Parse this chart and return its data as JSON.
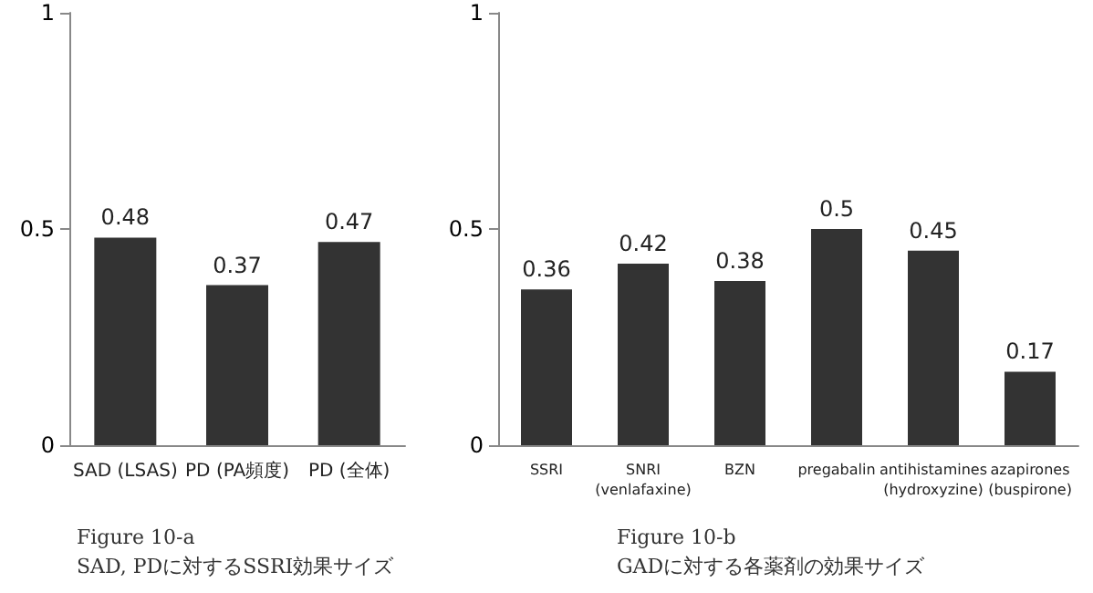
{
  "chart_data": [
    {
      "type": "bar",
      "title": "Figure 10-a",
      "subtitle": "SAD, PDに対するSSRI効果サイズ",
      "categories": [
        "SAD (LSAS)",
        "PD (PA頻度)",
        "PD (全体)"
      ],
      "values": [
        0.48,
        0.37,
        0.47
      ],
      "color": "#333333",
      "ylim": [
        0,
        1
      ],
      "yticks": [
        0,
        0.5,
        1
      ],
      "grid": false,
      "data_labels": true
    },
    {
      "type": "bar",
      "title": "Figure 10-b",
      "subtitle": "GADに対する各薬剤の効果サイズ",
      "categories": [
        "SSRI",
        "SNRI\n(venlafaxine)",
        "BZN",
        "pregabalin",
        "antihistamines\n(hydroxyzine)",
        "azapirones\n(buspirone)"
      ],
      "values": [
        0.36,
        0.42,
        0.38,
        0.5,
        0.45,
        0.17
      ],
      "color": "#333333",
      "ylim": [
        0,
        1
      ],
      "yticks": [
        0,
        0.5,
        1
      ],
      "grid": false,
      "data_labels": true
    }
  ]
}
